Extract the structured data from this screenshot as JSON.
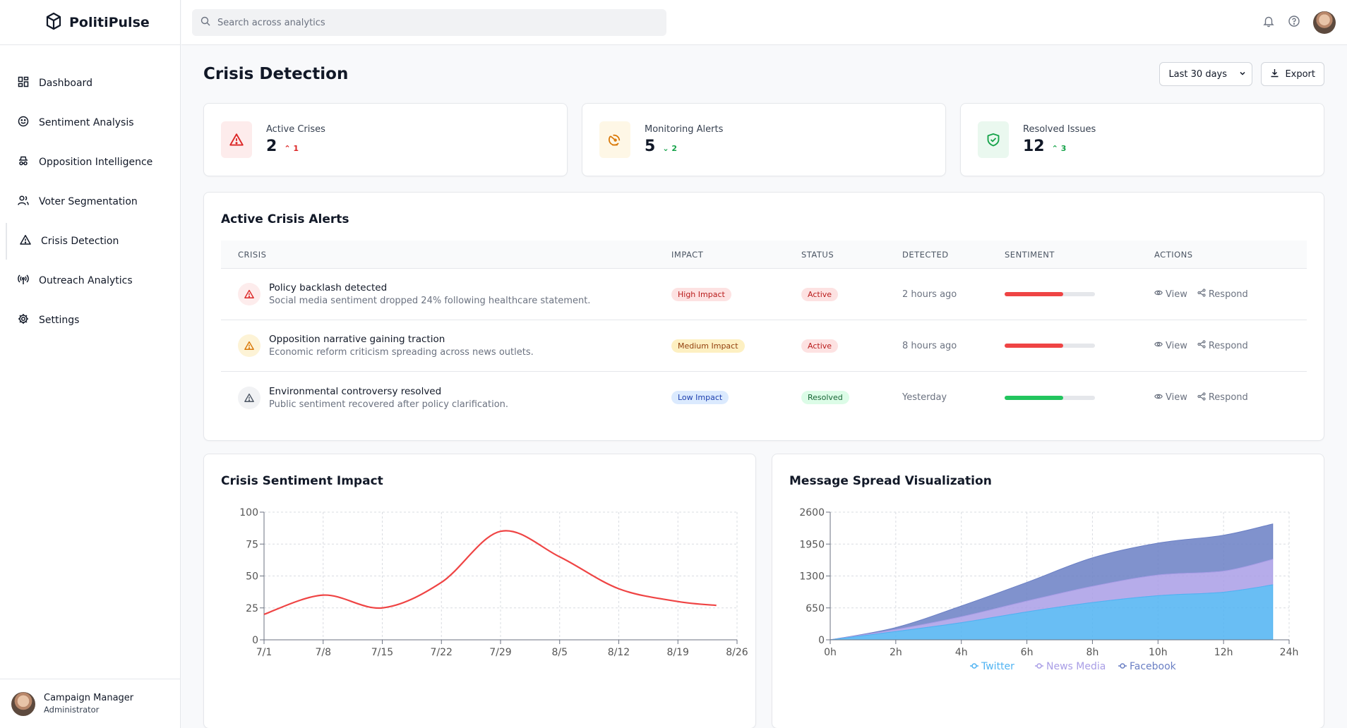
{
  "app": {
    "name": "PolitiPulse"
  },
  "search": {
    "placeholder": "Search across analytics"
  },
  "sidebar": {
    "items": [
      {
        "label": "Dashboard"
      },
      {
        "label": "Sentiment Analysis"
      },
      {
        "label": "Opposition Intelligence"
      },
      {
        "label": "Voter Segmentation"
      },
      {
        "label": "Crisis Detection"
      },
      {
        "label": "Outreach Analytics"
      },
      {
        "label": "Settings"
      }
    ],
    "active": "Crisis Detection"
  },
  "user": {
    "name": "Campaign Manager",
    "role": "Administrator"
  },
  "page": {
    "title": "Crisis Detection",
    "range_selected": "Last 30 days",
    "export_label": "Export"
  },
  "stats": [
    {
      "label": "Active Crises",
      "value": "2",
      "delta": "1",
      "color": "#dc2626",
      "bg": "#fdecec"
    },
    {
      "label": "Monitoring Alerts",
      "value": "5",
      "delta": "2",
      "color": "#d97706",
      "bg": "#fef7e6"
    },
    {
      "label": "Resolved Issues",
      "value": "12",
      "delta": "3",
      "color": "#16a34a",
      "bg": "#eaf8ef"
    }
  ],
  "alerts": {
    "title": "Active Crisis Alerts",
    "columns": [
      "CRISIS",
      "IMPACT",
      "STATUS",
      "DETECTED",
      "SENTIMENT",
      "ACTIONS"
    ],
    "rows": [
      {
        "title": "Policy backlash detected",
        "desc": "Social media sentiment dropped 24% following healthcare statement.",
        "impact": "High Impact",
        "status": "Active",
        "detected": "2 hours ago",
        "sentiment": 0.65,
        "level": "high"
      },
      {
        "title": "Opposition narrative gaining traction",
        "desc": "Economic reform criticism spreading across news outlets.",
        "impact": "Medium Impact",
        "status": "Active",
        "detected": "8 hours ago",
        "sentiment": 0.65,
        "level": "medium"
      },
      {
        "title": "Environmental controversy resolved",
        "desc": "Public sentiment recovered after policy clarification.",
        "impact": "Low Impact",
        "status": "Resolved",
        "detected": "Yesterday",
        "sentiment": 0.65,
        "level": "low"
      }
    ],
    "view_label": "View",
    "respond_label": "Respond"
  },
  "chart_data": [
    {
      "type": "line",
      "title": "Crisis Sentiment Impact",
      "x": [
        "7/1",
        "7/8",
        "7/15",
        "7/22",
        "7/29",
        "8/5",
        "8/12",
        "8/19",
        "8/26"
      ],
      "series": [
        {
          "values": [
            20,
            35,
            25,
            45,
            85,
            65,
            40,
            30,
            27
          ],
          "color": "#ef4444"
        }
      ],
      "ylim": [
        0,
        100
      ],
      "yticks": [
        0,
        25,
        50,
        75,
        100
      ],
      "grid": true
    },
    {
      "type": "area",
      "title": "Message Spread Visualization",
      "x": [
        "0h",
        "2h",
        "4h",
        "6h",
        "8h",
        "10h",
        "12h",
        "24h"
      ],
      "x_values": [
        0,
        2,
        4,
        6,
        8,
        10,
        12,
        14
      ],
      "data_x": [
        0,
        2,
        4,
        6,
        8,
        10,
        12,
        13.5
      ],
      "stacked": true,
      "series": [
        {
          "name": "Twitter",
          "values": [
            0,
            170,
            350,
            570,
            760,
            900,
            970,
            1120
          ],
          "color": "#4fb3f2"
        },
        {
          "name": "News Media",
          "values": [
            0,
            40,
            120,
            220,
            330,
            420,
            430,
            520
          ],
          "color": "#a99ee6"
        },
        {
          "name": "Facebook",
          "values": [
            0,
            40,
            220,
            380,
            580,
            650,
            730,
            720
          ],
          "color": "#6a7fc4"
        }
      ],
      "ylim": [
        0,
        2600
      ],
      "yticks": [
        0,
        650,
        1300,
        1950,
        2600
      ],
      "legend": "bottom",
      "grid": true
    }
  ]
}
